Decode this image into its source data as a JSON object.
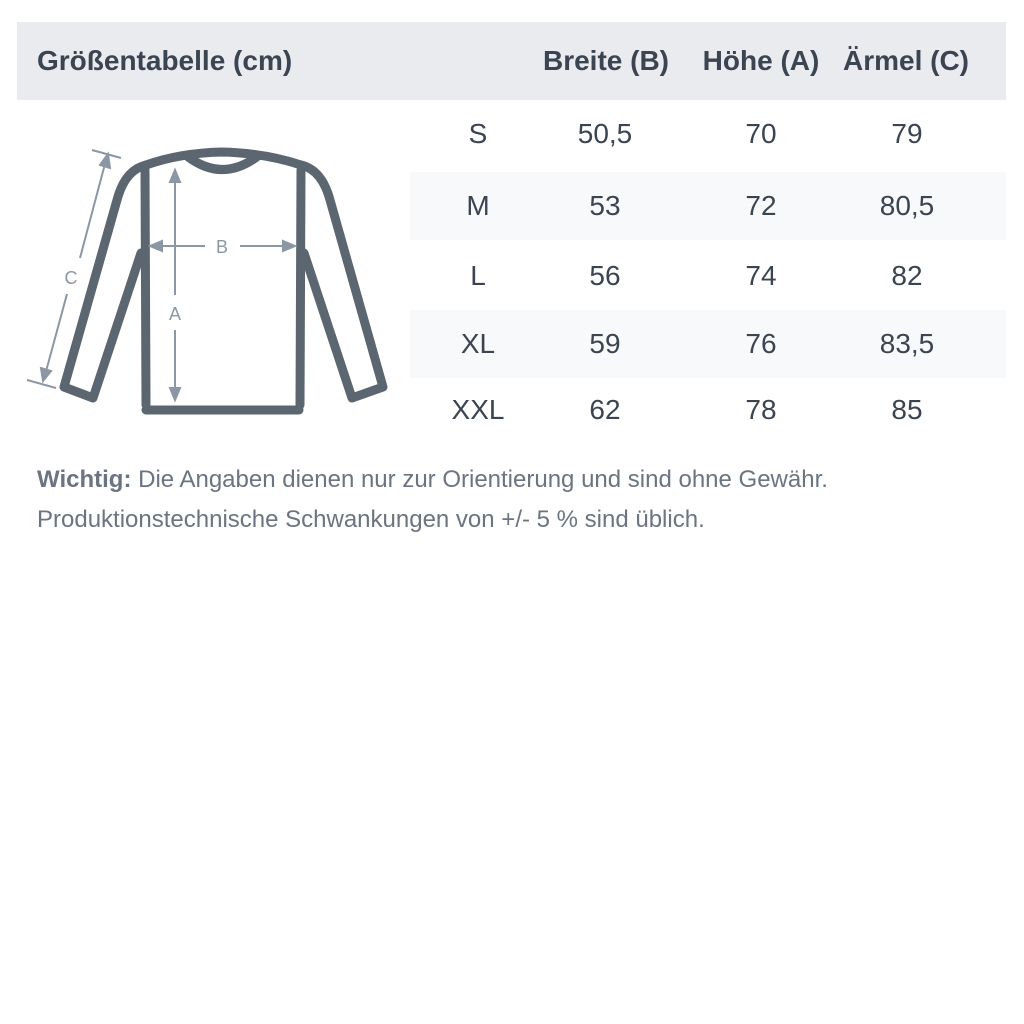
{
  "header": {
    "title": "Größentabelle (cm)",
    "columns": [
      "Breite (B)",
      "Höhe (A)",
      "Ärmel (C)"
    ]
  },
  "rows": [
    {
      "size": "S",
      "values": [
        "50,5",
        "70",
        "79"
      ]
    },
    {
      "size": "M",
      "values": [
        "53",
        "72",
        "80,5"
      ]
    },
    {
      "size": "L",
      "values": [
        "56",
        "74",
        "82"
      ]
    },
    {
      "size": "XL",
      "values": [
        "59",
        "76",
        "83,5"
      ]
    },
    {
      "size": "XXL",
      "values": [
        "62",
        "78",
        "85"
      ]
    }
  ],
  "diagram": {
    "labels": {
      "a": "A",
      "b": "B",
      "c": "C"
    },
    "garment_color": "#5c6670",
    "arrow_color": "#8b97a4"
  },
  "note": {
    "bold": "Wichtig:",
    "line1": " Die Angaben dienen nur zur Orientierung und sind ohne Gewähr.",
    "line2": "Produktionstechnische Schwankungen von +/- 5 % sind üblich."
  }
}
